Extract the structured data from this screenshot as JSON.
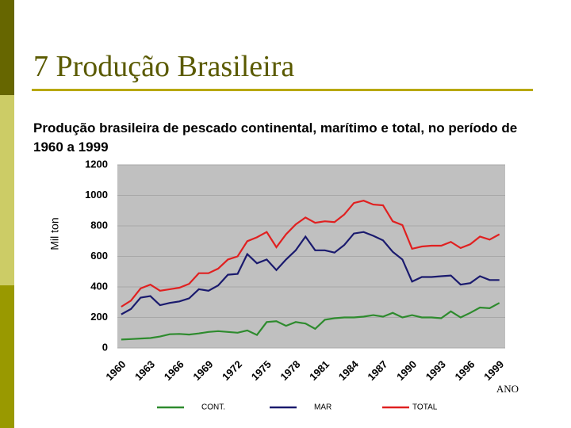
{
  "slide_title": "7 Produção Brasileira",
  "chart_data": {
    "type": "line",
    "title": "Produção brasileira de pescado continental, marítimo e total, no período de 1960 a 1999",
    "ylabel": "Mil ton",
    "xlabel": "ANO",
    "x": [
      1960,
      1961,
      1962,
      1963,
      1964,
      1965,
      1966,
      1967,
      1968,
      1969,
      1970,
      1971,
      1972,
      1973,
      1974,
      1975,
      1976,
      1977,
      1978,
      1979,
      1980,
      1981,
      1982,
      1983,
      1984,
      1985,
      1986,
      1987,
      1988,
      1989,
      1990,
      1991,
      1992,
      1993,
      1994,
      1995,
      1996,
      1997,
      1998,
      1999
    ],
    "series": [
      {
        "name": "CONT.",
        "color": "#2e8b2e",
        "values": [
          55,
          58,
          62,
          65,
          75,
          90,
          92,
          88,
          95,
          105,
          110,
          105,
          100,
          115,
          85,
          170,
          175,
          145,
          170,
          160,
          125,
          185,
          195,
          200,
          200,
          205,
          215,
          205,
          230,
          200,
          215,
          200,
          200,
          195,
          240,
          200,
          230,
          265,
          260,
          295
        ]
      },
      {
        "name": "MAR",
        "color": "#1a1a6e",
        "values": [
          220,
          255,
          330,
          340,
          280,
          295,
          305,
          325,
          385,
          375,
          410,
          480,
          485,
          615,
          555,
          580,
          510,
          580,
          640,
          730,
          640,
          640,
          625,
          675,
          750,
          760,
          735,
          705,
          630,
          580,
          435,
          465,
          465,
          470,
          475,
          415,
          425,
          470,
          445,
          445
        ]
      },
      {
        "name": "TOTAL",
        "color": "#e02020",
        "values": [
          270,
          310,
          390,
          415,
          375,
          385,
          395,
          420,
          490,
          490,
          520,
          580,
          600,
          700,
          725,
          760,
          660,
          745,
          810,
          855,
          820,
          830,
          825,
          875,
          950,
          965,
          940,
          935,
          830,
          805,
          650,
          665,
          670,
          670,
          695,
          655,
          680,
          730,
          710,
          745
        ]
      }
    ],
    "xlim": [
      1959.6,
      1999.6
    ],
    "xticks": [
      1960,
      1963,
      1966,
      1969,
      1972,
      1975,
      1978,
      1981,
      1984,
      1987,
      1990,
      1993,
      1996,
      1999
    ],
    "ylim": [
      0,
      1200
    ],
    "yticks": [
      0,
      200,
      400,
      600,
      800,
      1000,
      1200
    ],
    "grid": true
  }
}
